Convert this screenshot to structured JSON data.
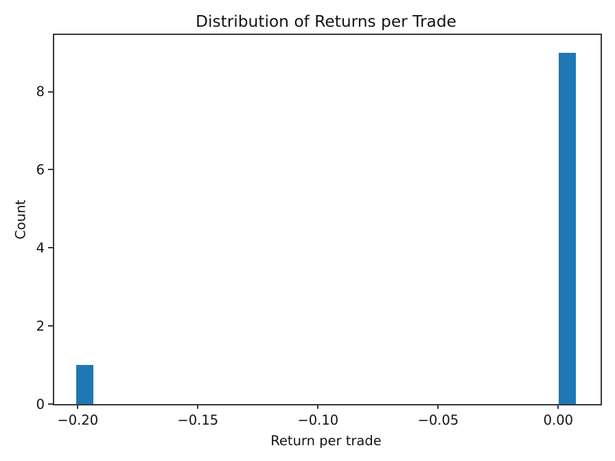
{
  "figure": {
    "background": "#ffffff"
  },
  "chart_data": {
    "type": "histogram",
    "title": "Distribution of Returns per Trade",
    "xlabel": "Return per trade",
    "ylabel": "Count",
    "bar_color": "#1f77b4",
    "axis_color": "#363636",
    "text_color": "#141414",
    "xlim": [
      -0.2098,
      0.0176
    ],
    "ylim": [
      0,
      9.45
    ],
    "grid": false,
    "legend": null,
    "x_ticks": {
      "values": [
        -0.2,
        -0.15,
        -0.1,
        -0.05,
        0.0
      ],
      "labels": [
        "−0.20",
        "−0.15",
        "−0.10",
        "−0.05",
        "0.00"
      ]
    },
    "y_ticks": {
      "values": [
        0,
        2,
        4,
        6,
        8
      ],
      "labels": [
        "0",
        "2",
        "4",
        "6",
        "8"
      ]
    },
    "bars": [
      {
        "x0": -0.2007,
        "x1": -0.1936,
        "count": 1
      },
      {
        "x0": 0.0002,
        "x1": 0.0073,
        "count": 9
      }
    ]
  }
}
